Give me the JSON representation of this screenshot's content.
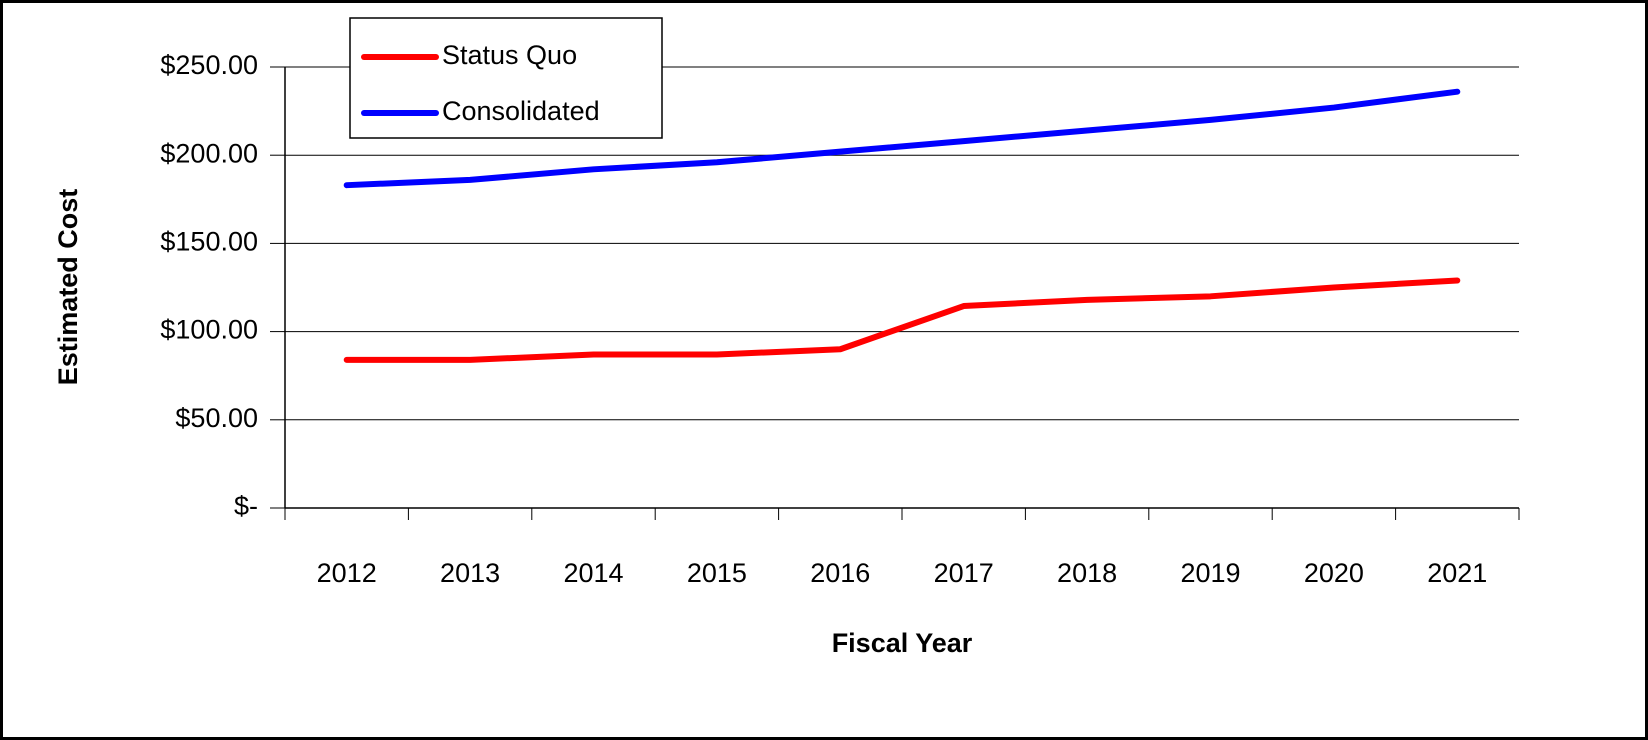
{
  "chart_data": {
    "type": "line",
    "x_label": "Fiscal Year",
    "y_label": "Estimated Cost",
    "categories": [
      "2012",
      "2013",
      "2014",
      "2015",
      "2016",
      "2017",
      "2018",
      "2019",
      "2020",
      "2021"
    ],
    "series": [
      {
        "name": "Status Quo",
        "color": "#ff0000",
        "values": [
          84,
          84,
          87,
          87,
          90,
          114.5,
          118,
          120,
          125,
          129
        ]
      },
      {
        "name": "Consolidated",
        "color": "#0000ff",
        "values": [
          183,
          186,
          192,
          196,
          202,
          208,
          214,
          220,
          227,
          236
        ]
      }
    ],
    "ylim": [
      0,
      250
    ],
    "yticks": [
      {
        "value": 0,
        "label": "$-"
      },
      {
        "value": 50,
        "label": "$50.00"
      },
      {
        "value": 100,
        "label": "$100.00"
      },
      {
        "value": 150,
        "label": "$150.00"
      },
      {
        "value": 200,
        "label": "$200.00"
      },
      {
        "value": 250,
        "label": "$250.00"
      }
    ],
    "grid": true,
    "legend": "upper left"
  }
}
